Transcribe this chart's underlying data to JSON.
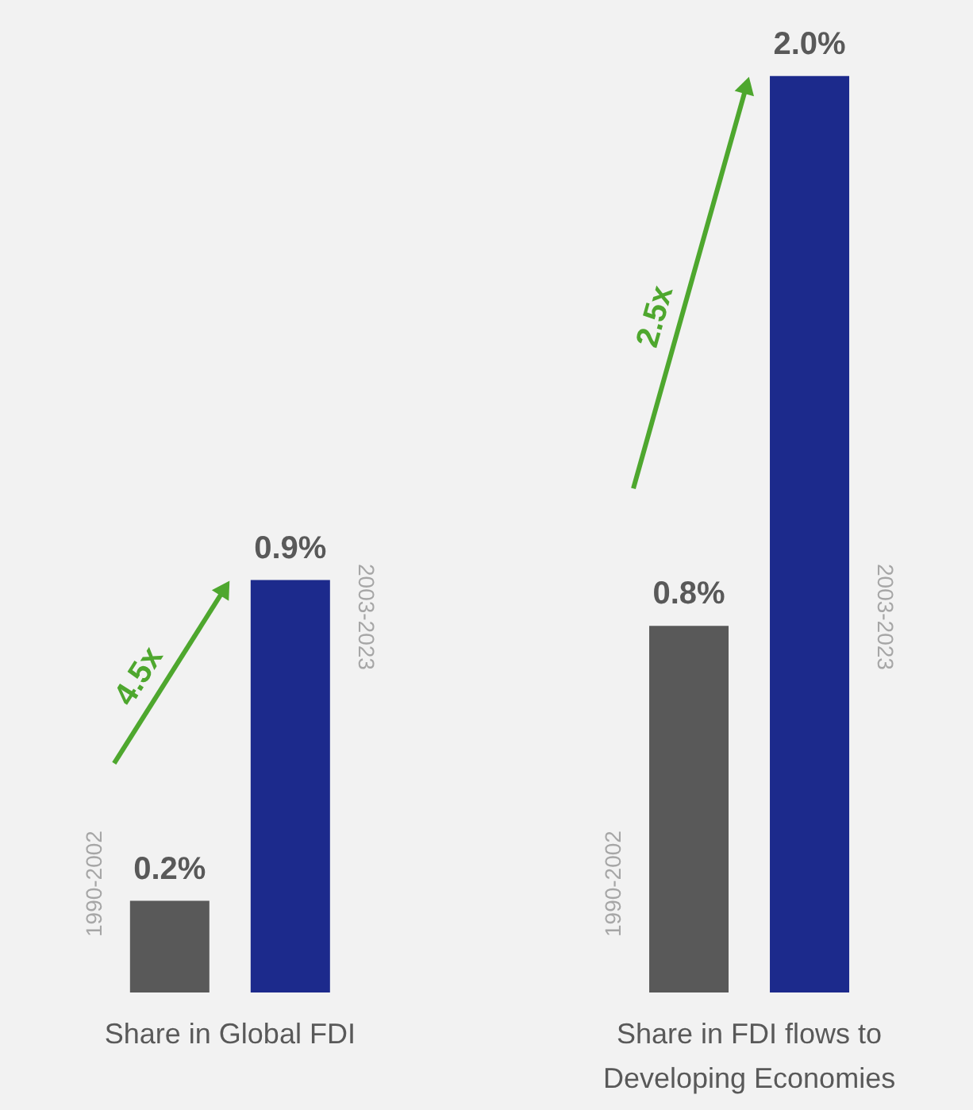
{
  "chart_data": {
    "type": "bar",
    "categories": [
      "Share in Global FDI",
      "Share in FDI flows to Developing Economies"
    ],
    "series": [
      {
        "name": "1990-2002",
        "color": "#595959",
        "values": [
          0.2,
          0.8
        ],
        "value_labels": [
          "0.2%",
          "0.8%"
        ]
      },
      {
        "name": "2003-2023",
        "color": "#1c2a8c",
        "values": [
          0.9,
          2.0
        ],
        "value_labels": [
          "0.9%",
          "2.0%"
        ]
      }
    ],
    "annotations": [
      "4.5x",
      "2.5x"
    ],
    "legend": false,
    "grid": false
  }
}
